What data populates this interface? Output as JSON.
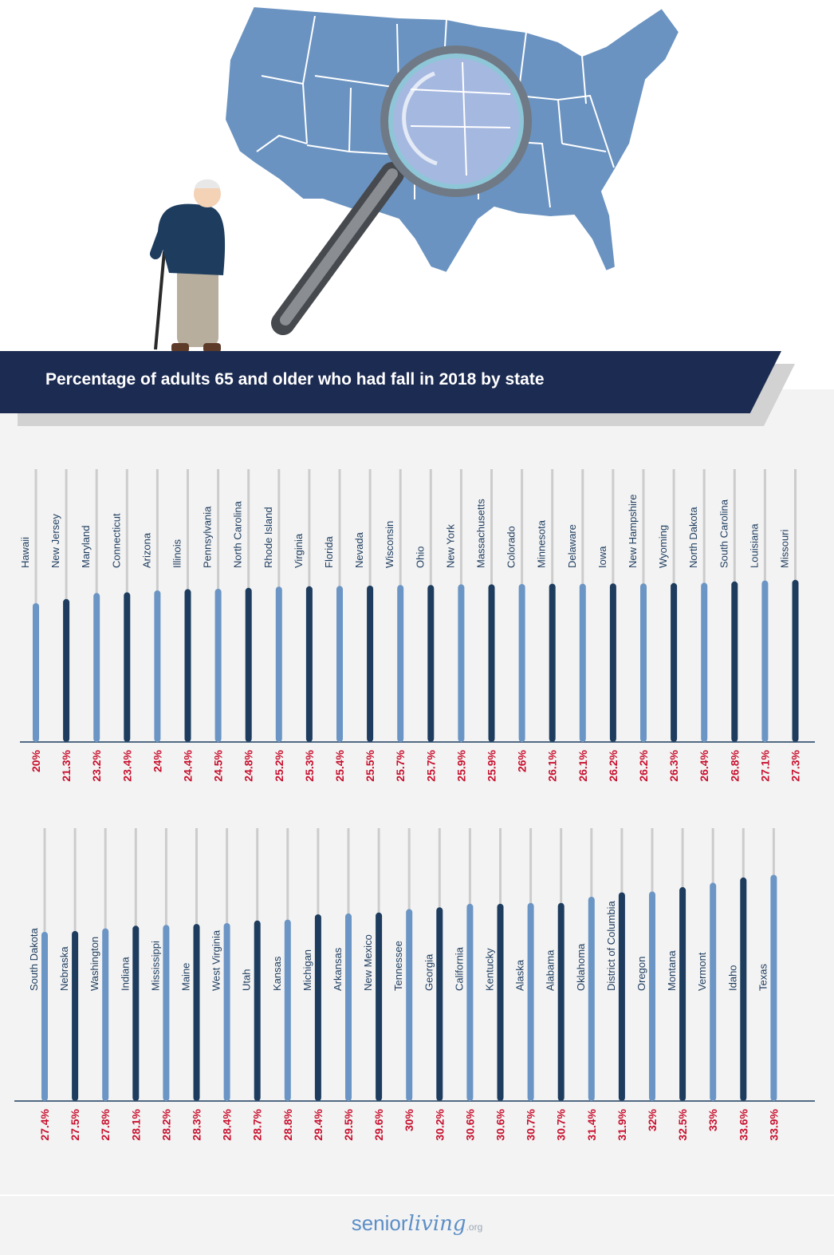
{
  "chart_title": "Percentage of adults 65 and older who had fall in 2018 by state",
  "colors": {
    "banner": "#1c2b52",
    "bar_light": "#6b95c4",
    "bar_dark": "#1d3c5e",
    "value_text": "#c8102e",
    "track": "#cccccc",
    "map": "#6a93c1",
    "panel_bg": "#f3f3f3"
  },
  "illustration": {
    "map": "united-states-map",
    "magnifier": "magnifying-glass-icon",
    "person": "elderly-man-with-cane"
  },
  "brand": {
    "part_a": "senior",
    "part_b": "living",
    "part_c": ".org"
  },
  "chart_data": [
    {
      "type": "bar",
      "categories": [
        "Hawaii",
        "New Jersey",
        "Maryland",
        "Connecticut",
        "Arizona",
        "Illinois",
        "Pennsylvania",
        "North Carolina",
        "Rhode Island",
        "Virginia",
        "Florida",
        "Nevada",
        "Wisconsin",
        "Ohio",
        "New York",
        "Massachusetts",
        "Colorado",
        "Minnesota",
        "Delaware",
        "Iowa",
        "New Hampshire",
        "Wyoming",
        "North Dakota",
        "South Carolina",
        "Louisiana",
        "Missouri"
      ],
      "values": [
        20,
        21.3,
        23.2,
        23.4,
        24,
        24.4,
        24.5,
        24.8,
        25.2,
        25.3,
        25.4,
        25.5,
        25.7,
        25.7,
        25.9,
        25.9,
        26,
        26.1,
        26.1,
        26.2,
        26.2,
        26.3,
        26.4,
        26.8,
        27.1,
        27.3
      ],
      "value_labels": [
        "20%",
        "21.3%",
        "23.2%",
        "23.4%",
        "24%",
        "24.4%",
        "24.5%",
        "24.8%",
        "25.2%",
        "25.3%",
        "25.4%",
        "25.5%",
        "25.7%",
        "25.7%",
        "25.9%",
        "25.9%",
        "26%",
        "26.1%",
        "26.1%",
        "26.2%",
        "26.2%",
        "26.3%",
        "26.4%",
        "26.8%",
        "27.1%",
        "27.3%"
      ]
    },
    {
      "type": "bar",
      "categories": [
        "South Dakota",
        "Nebraska",
        "Washington",
        "Indiana",
        "Mississippi",
        "Maine",
        "West Virginia",
        "Utah",
        "Kansas",
        "Michigan",
        "Arkansas",
        "New Mexico",
        "Tennessee",
        "Georgia",
        "California",
        "Kentucky",
        "Alaska",
        "Alabama",
        "Oklahoma",
        "District of Columbia",
        "Oregon",
        "Montana",
        "Vermont",
        "Idaho",
        "Texas"
      ],
      "values": [
        27.4,
        27.5,
        27.8,
        28.1,
        28.2,
        28.3,
        28.4,
        28.7,
        28.8,
        29.4,
        29.5,
        29.6,
        30,
        30.2,
        30.6,
        30.6,
        30.7,
        30.7,
        31.4,
        31.9,
        32,
        32.5,
        33,
        33.6,
        33.9
      ],
      "value_labels": [
        "27.4%",
        "27.5%",
        "27.8%",
        "28.1%",
        "28.2%",
        "28.3%",
        "28.4%",
        "28.7%",
        "28.8%",
        "29.4%",
        "29.5%",
        "29.6%",
        "30%",
        "30.2%",
        "30.6%",
        "30.6%",
        "30.7%",
        "30.7%",
        "31.4%",
        "31.9%",
        "32%",
        "32.5%",
        "33%",
        "33.6%",
        "33.9%"
      ]
    }
  ]
}
